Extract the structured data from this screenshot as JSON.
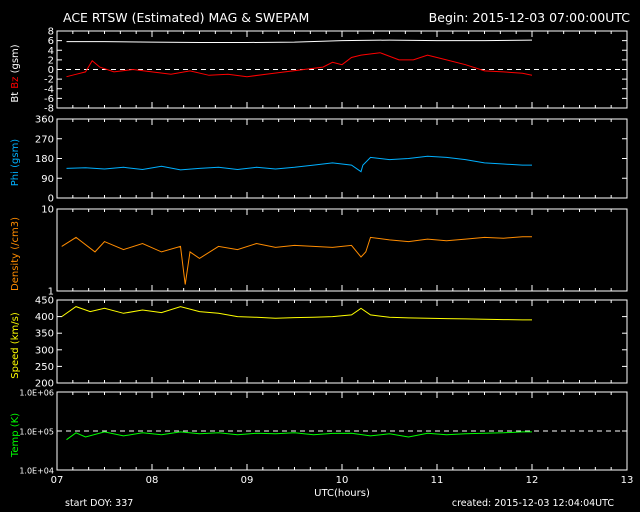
{
  "header": {
    "title": "ACE RTSW (Estimated) MAG & SWEPAM",
    "begin": "Begin: 2015-12-03 07:00:00UTC"
  },
  "footer": {
    "start": "start DOY: 337",
    "created": "created: 2015-12-03 12:04:04UTC"
  },
  "colors": {
    "background": "#000000",
    "frame": "#ffffff",
    "bt": "#ffffff",
    "bz": "#ff0000",
    "phi": "#00b0ff",
    "density": "#ff8c00",
    "speed": "#ffff00",
    "temp": "#00ff00"
  },
  "chart_data": [
    {
      "type": "line",
      "ylabel_parts": [
        "Bt",
        "Bz",
        "(gsm)"
      ],
      "ylim": [
        -8,
        8
      ],
      "yticks": [
        "8",
        "6",
        "4",
        "2",
        "0",
        "-2",
        "-4",
        "-6",
        "-8"
      ],
      "xlim": [
        7,
        13
      ],
      "xticks": [
        "07",
        "08",
        "09",
        "10",
        "11",
        "12",
        "13"
      ],
      "reference_line": 0,
      "series": [
        {
          "color": "#ffffff",
          "x": [
            7.1,
            7.5,
            8.0,
            8.5,
            9.0,
            9.5,
            10.0,
            10.5,
            11.0,
            11.5,
            12.0
          ],
          "values": [
            5.8,
            5.8,
            5.7,
            5.6,
            5.6,
            5.7,
            6.0,
            6.1,
            6.0,
            6.0,
            6.1
          ]
        },
        {
          "color": "#ff0000",
          "x": [
            7.1,
            7.2,
            7.3,
            7.37,
            7.45,
            7.6,
            7.8,
            8.0,
            8.2,
            8.4,
            8.6,
            8.8,
            9.0,
            9.2,
            9.4,
            9.6,
            9.8,
            9.9,
            10.0,
            10.1,
            10.2,
            10.4,
            10.6,
            10.75,
            10.9,
            11.1,
            11.3,
            11.5,
            11.7,
            11.9,
            12.0
          ],
          "values": [
            -1.5,
            -1,
            -0.5,
            1.8,
            0.5,
            -0.5,
            0,
            -0.5,
            -1,
            -0.3,
            -1.2,
            -1,
            -1.5,
            -1,
            -0.5,
            0,
            0.5,
            1.5,
            1,
            2.5,
            3,
            3.5,
            2,
            2,
            3,
            2,
            1,
            -0.3,
            -0.5,
            -0.8,
            -1.2
          ]
        }
      ]
    },
    {
      "type": "line",
      "ylabel_parts": [
        "Phi (gsm)"
      ],
      "ylim": [
        0,
        360
      ],
      "yticks": [
        "360",
        "270",
        "180",
        "90",
        "0"
      ],
      "xlim": [
        7,
        13
      ],
      "xticks": [
        "07",
        "08",
        "09",
        "10",
        "11",
        "12",
        "13"
      ],
      "series": [
        {
          "color": "#00b0ff",
          "x": [
            7.1,
            7.3,
            7.5,
            7.7,
            7.9,
            8.1,
            8.3,
            8.5,
            8.7,
            8.9,
            9.1,
            9.3,
            9.5,
            9.7,
            9.9,
            10.1,
            10.2,
            10.22,
            10.3,
            10.5,
            10.7,
            10.9,
            11.1,
            11.3,
            11.5,
            11.7,
            11.9,
            12.0
          ],
          "values": [
            135,
            138,
            132,
            140,
            130,
            145,
            128,
            135,
            140,
            130,
            140,
            132,
            140,
            150,
            160,
            150,
            120,
            150,
            185,
            175,
            180,
            190,
            185,
            175,
            160,
            155,
            150,
            150
          ]
        }
      ]
    },
    {
      "type": "line",
      "ylabel_parts": [
        "Density (/cm3)"
      ],
      "yscale": "log",
      "ylim": [
        1,
        10
      ],
      "yticks": [
        "10",
        "1"
      ],
      "xlim": [
        7,
        13
      ],
      "xticks": [
        "07",
        "08",
        "09",
        "10",
        "11",
        "12",
        "13"
      ],
      "series": [
        {
          "color": "#ff8c00",
          "x": [
            7.05,
            7.2,
            7.4,
            7.5,
            7.7,
            7.9,
            8.1,
            8.3,
            8.35,
            8.4,
            8.5,
            8.7,
            8.9,
            9.1,
            9.3,
            9.5,
            9.7,
            9.9,
            10.1,
            10.2,
            10.25,
            10.3,
            10.5,
            10.7,
            10.9,
            11.1,
            11.3,
            11.5,
            11.7,
            11.9,
            12.0
          ],
          "values": [
            3.5,
            4.5,
            3,
            4,
            3.2,
            3.8,
            3,
            3.5,
            1.2,
            3.0,
            2.5,
            3.5,
            3.2,
            3.8,
            3.4,
            3.6,
            3.5,
            3.4,
            3.6,
            2.6,
            3.0,
            4.5,
            4.2,
            4.0,
            4.3,
            4.1,
            4.3,
            4.5,
            4.4,
            4.6,
            4.6
          ]
        }
      ]
    },
    {
      "type": "line",
      "ylabel_parts": [
        "Speed (km/s)"
      ],
      "ylim": [
        200,
        450
      ],
      "yticks": [
        "450",
        "400",
        "350",
        "300",
        "250",
        "200"
      ],
      "xlim": [
        7,
        13
      ],
      "xticks": [
        "07",
        "08",
        "09",
        "10",
        "11",
        "12",
        "13"
      ],
      "series": [
        {
          "color": "#ffff00",
          "x": [
            7.05,
            7.2,
            7.35,
            7.5,
            7.7,
            7.9,
            8.1,
            8.3,
            8.5,
            8.7,
            8.9,
            9.1,
            9.3,
            9.5,
            9.7,
            9.9,
            10.1,
            10.2,
            10.3,
            10.5,
            10.7,
            10.9,
            11.1,
            11.3,
            11.5,
            11.7,
            11.9,
            12.0
          ],
          "values": [
            400,
            430,
            415,
            425,
            410,
            420,
            412,
            430,
            415,
            410,
            400,
            398,
            395,
            397,
            398,
            400,
            405,
            425,
            405,
            398,
            396,
            395,
            394,
            393,
            392,
            391,
            390,
            390
          ]
        }
      ]
    },
    {
      "type": "line",
      "ylabel_parts": [
        "Temp (K)"
      ],
      "yscale": "log",
      "ylim": [
        10000,
        1000000
      ],
      "yticks": [
        "1.0E+06",
        "1.0E+05",
        "1.0E+04"
      ],
      "xlabel": "UTC(hours)",
      "xlim": [
        7,
        13
      ],
      "xticks": [
        "07",
        "08",
        "09",
        "10",
        "11",
        "12",
        "13"
      ],
      "reference_line": 100000,
      "series": [
        {
          "color": "#00ff00",
          "x": [
            7.1,
            7.2,
            7.3,
            7.5,
            7.7,
            7.9,
            8.1,
            8.3,
            8.5,
            8.7,
            8.9,
            9.1,
            9.3,
            9.5,
            9.7,
            9.9,
            10.1,
            10.3,
            10.5,
            10.7,
            10.9,
            11.1,
            11.3,
            11.5,
            11.7,
            11.9,
            12.0
          ],
          "values": [
            60000,
            90000,
            70000,
            95000,
            75000,
            90000,
            80000,
            95000,
            85000,
            90000,
            80000,
            88000,
            85000,
            90000,
            80000,
            87000,
            88000,
            75000,
            85000,
            70000,
            88000,
            80000,
            85000,
            88000,
            90000,
            95000,
            95000
          ]
        }
      ]
    }
  ]
}
